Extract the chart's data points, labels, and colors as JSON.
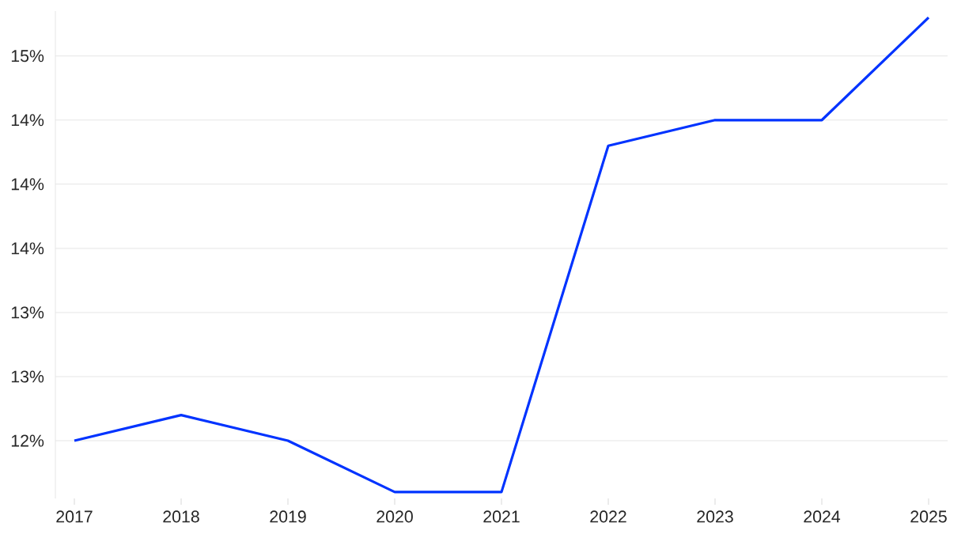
{
  "chart_data": {
    "type": "line",
    "categories": [
      "2017",
      "2018",
      "2019",
      "2020",
      "2021",
      "2022",
      "2023",
      "2024",
      "2025"
    ],
    "values": [
      12.0,
      12.2,
      12.0,
      11.6,
      11.6,
      14.3,
      14.5,
      14.5,
      15.3
    ],
    "color": "#0033ff",
    "ylim": [
      11.55,
      15.35
    ],
    "yticks": [
      {
        "value": 12,
        "label": "12%"
      },
      {
        "value": 12.5,
        "label": "13%"
      },
      {
        "value": 13,
        "label": "13%"
      },
      {
        "value": 13.5,
        "label": "14%"
      },
      {
        "value": 14,
        "label": "14%"
      },
      {
        "value": 14.5,
        "label": "14%"
      },
      {
        "value": 15,
        "label": "15%"
      }
    ],
    "grid": "y",
    "marker": "none",
    "line_style": "solid"
  }
}
